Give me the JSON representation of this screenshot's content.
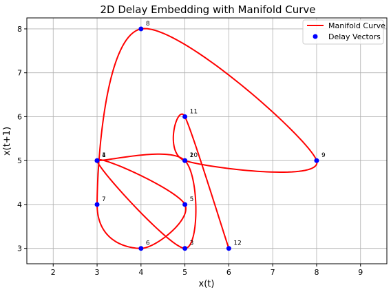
{
  "chart_data": {
    "type": "line",
    "title": "2D Delay Embedding with Manifold Curve",
    "xlabel": "x(t)",
    "ylabel": "x(t+1)",
    "xlim": [
      1.4,
      9.6
    ],
    "ylim": [
      2.65,
      8.25
    ],
    "xticks": [
      2,
      3,
      4,
      5,
      6,
      7,
      8,
      9
    ],
    "yticks": [
      3,
      4,
      5,
      6,
      7,
      8
    ],
    "grid": true,
    "legend": {
      "position": "top-right",
      "entries": [
        "Manifold Curve",
        "Delay Vectors"
      ]
    },
    "series": [
      {
        "name": "Manifold Curve",
        "kind": "line",
        "color": "#ff0000"
      },
      {
        "name": "Delay Vectors",
        "kind": "scatter",
        "color": "#0000ff"
      }
    ],
    "points": [
      {
        "label": "1",
        "x": 3,
        "y": 5
      },
      {
        "label": "2",
        "x": 5,
        "y": 5
      },
      {
        "label": "3",
        "x": 5,
        "y": 3
      },
      {
        "label": "4",
        "x": 3,
        "y": 5
      },
      {
        "label": "5",
        "x": 5,
        "y": 4
      },
      {
        "label": "6",
        "x": 4,
        "y": 3
      },
      {
        "label": "7",
        "x": 3,
        "y": 4
      },
      {
        "label": "8",
        "x": 4,
        "y": 8
      },
      {
        "label": "9",
        "x": 8,
        "y": 5
      },
      {
        "label": "10",
        "x": 5,
        "y": 5
      },
      {
        "label": "11",
        "x": 5,
        "y": 6
      },
      {
        "label": "12",
        "x": 6,
        "y": 3
      }
    ],
    "colors": {
      "curve": "#ff0000",
      "points": "#0000ff",
      "grid": "#b0b0b0"
    }
  }
}
